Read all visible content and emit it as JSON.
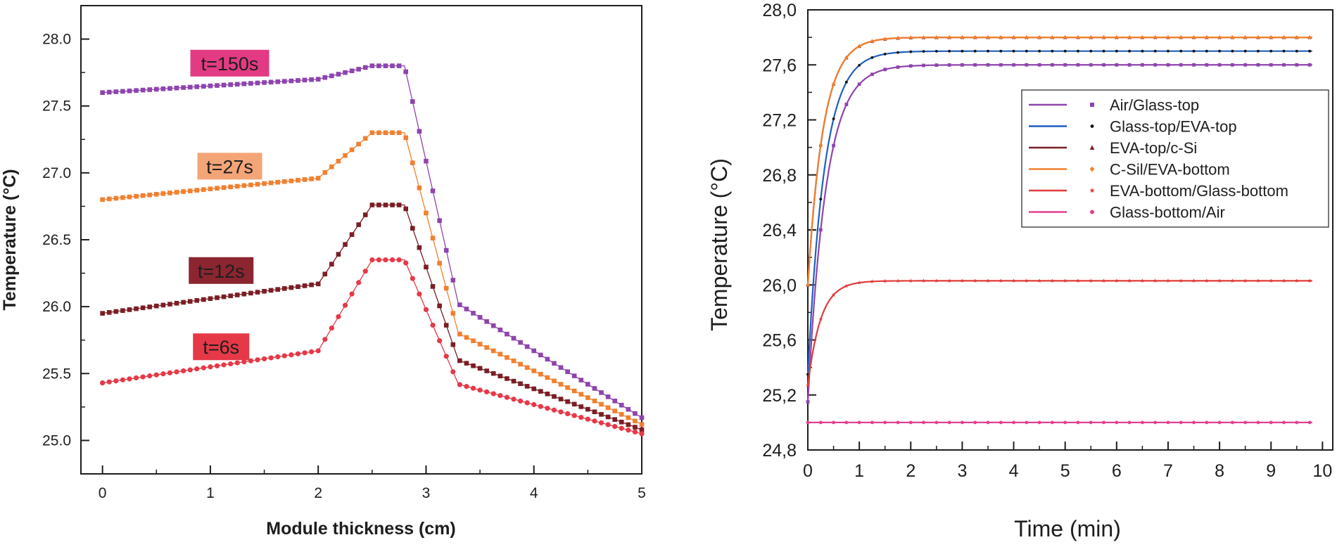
{
  "chart_data": [
    {
      "type": "line",
      "xlabel": "Module thickness (cm)",
      "ylabel": "Temperature (°C)",
      "xlim": [
        -0.2,
        5
      ],
      "ylim": [
        24.75,
        28.25
      ],
      "xticks": [
        "0",
        "1",
        "2",
        "3",
        "4",
        "5"
      ],
      "yticks": [
        "25.0",
        "25.5",
        "26.0",
        "26.5",
        "27.0",
        "27.5",
        "28.0"
      ],
      "annotations": [
        {
          "text": "t=150s",
          "x": 1.18,
          "y": 27.82,
          "color": "#e23b83"
        },
        {
          "text": "t=27s",
          "x": 1.18,
          "y": 27.05,
          "color": "#f4a577"
        },
        {
          "text": "t=12s",
          "x": 1.1,
          "y": 26.27,
          "color": "#8b2530"
        },
        {
          "text": "t=6s",
          "x": 1.1,
          "y": 25.7,
          "color": "#e53947"
        }
      ],
      "series": [
        {
          "color": "#8e44ad",
          "marker": "square",
          "x": [
            0,
            2,
            2.5,
            2.8,
            3.3,
            5
          ],
          "y": [
            27.6,
            27.7,
            27.8,
            27.8,
            26.02,
            25.17
          ]
        },
        {
          "color": "#f08030",
          "marker": "square",
          "x": [
            0,
            2,
            2.5,
            2.8,
            3.3,
            5
          ],
          "y": [
            26.8,
            26.96,
            27.3,
            27.3,
            25.8,
            25.12
          ]
        },
        {
          "color": "#7a1e24",
          "marker": "square",
          "x": [
            0,
            2,
            2.5,
            2.8,
            3.3,
            5
          ],
          "y": [
            25.95,
            26.17,
            26.76,
            26.76,
            25.6,
            25.08
          ]
        },
        {
          "color": "#e53947",
          "marker": "circle",
          "x": [
            0,
            2,
            2.5,
            2.8,
            3.3,
            5
          ],
          "y": [
            25.43,
            25.67,
            26.35,
            26.35,
            25.42,
            25.05
          ]
        }
      ]
    },
    {
      "type": "line",
      "xlabel": "Time (min)",
      "ylabel": "Temperature (°C)",
      "xlim": [
        0,
        10.2
      ],
      "ylim": [
        24.8,
        28.0
      ],
      "xticks": [
        "0",
        "1",
        "2",
        "3",
        "4",
        "5",
        "6",
        "7",
        "8",
        "9",
        "10"
      ],
      "yticks": [
        "24,8",
        "25,2",
        "25,6",
        "26,0",
        "26,4",
        "26,8",
        "27,2",
        "27,6",
        "28,0"
      ],
      "legend_position": "top-right",
      "series": [
        {
          "name": "Air/Glass-top",
          "color": "#8e44ad",
          "marker": "square",
          "start": 25.15,
          "end": 27.6,
          "tau": 0.35
        },
        {
          "name": "Glass-top/EVA-top",
          "color": "#1f5fbf",
          "marker": "dot",
          "start": 25.35,
          "end": 27.7,
          "tau": 0.32
        },
        {
          "name": "EVA-top/c-Si",
          "color": "#7a1e24",
          "marker": "triangle",
          "start": 26.0,
          "end": 27.8,
          "tau": 0.3
        },
        {
          "name": "C-Sil/EVA-bottom",
          "color": "#f08030",
          "marker": "diamond",
          "start": 26.0,
          "end": 27.8,
          "tau": 0.3
        },
        {
          "name": "EVA-bottom/Glass-bottom",
          "color": "#e23b3b",
          "marker": "star",
          "start": 25.27,
          "end": 26.03,
          "tau": 0.25
        },
        {
          "name": "Glass-bottom/Air",
          "color": "#e0428f",
          "marker": "circle",
          "start": 25.0,
          "end": 25.0,
          "tau": 0.3
        }
      ]
    }
  ]
}
